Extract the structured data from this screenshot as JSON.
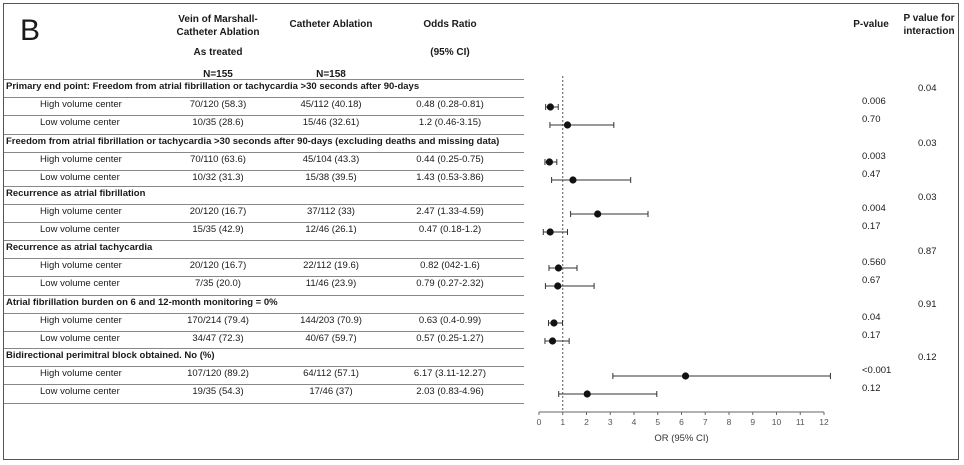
{
  "panel_label": "B",
  "headers": {
    "vom_line1": "Vein of Marshall-",
    "vom_line2": "Catheter Ablation",
    "ca": "Catheter Ablation",
    "or_line1": "Odds Ratio",
    "or_line2": "(95% CI)",
    "as_treated": "As treated",
    "n_vom": "N=155",
    "n_ca": "N=158",
    "pvalue": "P-value",
    "pint_line1": "P value for",
    "pint_line2": "interaction"
  },
  "chart_data": {
    "type": "forest",
    "xlabel": "OR (95% CI)",
    "xlim": [
      0,
      12
    ],
    "xticks": [
      0,
      1,
      2,
      3,
      4,
      5,
      6,
      7,
      8,
      9,
      10,
      11,
      12
    ],
    "reference_line": 1,
    "sections": [
      {
        "title": "Primary end point: Freedom from atrial fibrillation or tachycardia >30 seconds after 90-days",
        "p_interaction": "0.04",
        "rows": [
          {
            "label": "High volume center",
            "vom": "70/120 (58.3)",
            "ca": "45/112 (40.18)",
            "or_text": "0.48 (0.28-0.81)",
            "p": "0.006",
            "or": 0.48,
            "lo": 0.28,
            "hi": 0.81
          },
          {
            "label": "Low volume center",
            "vom": "10/35 (28.6)",
            "ca": "15/46 (32.61)",
            "or_text": "1.2 (0.46-3.15)",
            "p": "0.70",
            "or": 1.2,
            "lo": 0.46,
            "hi": 3.15
          }
        ]
      },
      {
        "title": "Freedom from atrial fibrillation or tachycardia >30 seconds after 90-days (excluding deaths and missing data)",
        "p_interaction": "0.03",
        "rows": [
          {
            "label": "High volume center",
            "vom": "70/110 (63.6)",
            "ca": "45/104 (43.3)",
            "or_text": "0.44 (0.25-0.75)",
            "p": "0.003",
            "or": 0.44,
            "lo": 0.25,
            "hi": 0.75
          },
          {
            "label": "Low volume center",
            "vom": "10/32 (31.3)",
            "ca": "15/38 (39.5)",
            "or_text": "1.43 (0.53-3.86)",
            "p": "0.47",
            "or": 1.43,
            "lo": 0.53,
            "hi": 3.86
          }
        ]
      },
      {
        "title": "Recurrence as atrial fibrillation",
        "p_interaction": "0.03",
        "rows": [
          {
            "label": "High volume center",
            "vom": "20/120 (16.7)",
            "ca": "37/112 (33)",
            "or_text": "2.47 (1.33-4.59)",
            "p": "0.004",
            "or": 2.47,
            "lo": 1.33,
            "hi": 4.59
          },
          {
            "label": "Low volume center",
            "vom": "15/35 (42.9)",
            "ca": "12/46 (26.1)",
            "or_text": "0.47 (0.18-1.2)",
            "p": "0.17",
            "or": 0.47,
            "lo": 0.18,
            "hi": 1.2
          }
        ]
      },
      {
        "title": "Recurrence as atrial tachycardia",
        "p_interaction": "0.87",
        "rows": [
          {
            "label": "High volume center",
            "vom": "20/120 (16.7)",
            "ca": "22/112 (19.6)",
            "or_text": "0.82 (042-1.6)",
            "p": "0.560",
            "or": 0.82,
            "lo": 0.42,
            "hi": 1.6
          },
          {
            "label": "Low volume center",
            "vom": "7/35 (20.0)",
            "ca": "11/46 (23.9)",
            "or_text": "0.79 (0.27-2.32)",
            "p": "0.67",
            "or": 0.79,
            "lo": 0.27,
            "hi": 2.32
          }
        ]
      },
      {
        "title": "Atrial fibrillation burden on 6 and 12-month monitoring = 0%",
        "p_interaction": "0.91",
        "rows": [
          {
            "label": "High volume center",
            "vom": "170/214 (79.4)",
            "ca": "144/203 (70.9)",
            "or_text": "0.63 (0.4-0.99)",
            "p": "0.04",
            "or": 0.63,
            "lo": 0.4,
            "hi": 0.99
          },
          {
            "label": "Low volume center",
            "vom": "34/47 (72.3)",
            "ca": "40/67 (59.7)",
            "or_text": "0.57 (0.25-1.27)",
            "p": "0.17",
            "or": 0.57,
            "lo": 0.25,
            "hi": 1.27
          }
        ]
      },
      {
        "title": "Bidirectional perimitral block obtained. No (%)",
        "p_interaction": "0.12",
        "rows": [
          {
            "label": "High volume center",
            "vom": "107/120 (89.2)",
            "ca": "64/112 (57.1)",
            "or_text": "6.17 (3.11-12.27)",
            "p": "<0.001",
            "or": 6.17,
            "lo": 3.11,
            "hi": 12.27
          },
          {
            "label": "Low volume center",
            "vom": "19/35 (54.3)",
            "ca": "17/46 (37)",
            "or_text": "2.03 (0.83-4.96)",
            "p": "0.12",
            "or": 2.03,
            "lo": 0.83,
            "hi": 4.96
          }
        ]
      }
    ]
  }
}
